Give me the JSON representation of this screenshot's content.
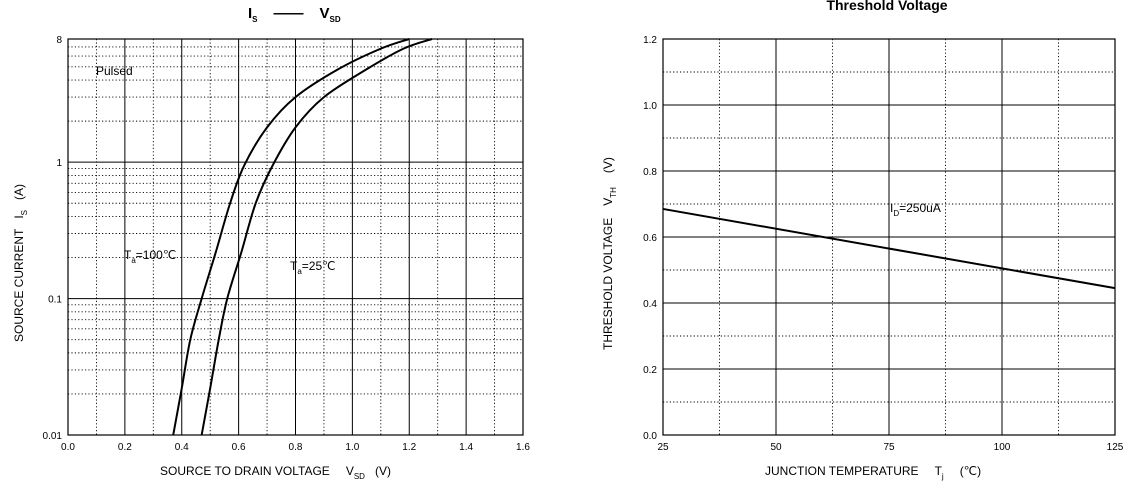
{
  "chart_data": [
    {
      "type": "line",
      "title": {
        "main": "I",
        "sub": "S",
        "dash": "——",
        "main2": "V",
        "sub2": "SD"
      },
      "xlabel": {
        "text": "SOURCE TO DRAIN VOLTAGE",
        "symbol": "V",
        "sub": "SD",
        "unit": "(V)"
      },
      "ylabel": {
        "text": "SOURCE CURRENT",
        "symbol": "I",
        "sub": "S",
        "unit": "(A)"
      },
      "xlim": [
        0.0,
        1.6
      ],
      "ylim": [
        0.01,
        8
      ],
      "yscale": "log",
      "grid": true,
      "x_ticks": [
        "0.0",
        "0.2",
        "0.4",
        "0.6",
        "0.8",
        "1.0",
        "1.2",
        "1.4",
        "1.6"
      ],
      "y_ticks": [
        {
          "value": 0.01,
          "label": "0.01"
        },
        {
          "value": 0.1,
          "label": "0.1"
        },
        {
          "value": 1,
          "label": "1"
        },
        {
          "value": 8,
          "label": "8"
        }
      ],
      "annotations": [
        {
          "text": "Pulsed"
        },
        {
          "text": "T",
          "sub": "a",
          "text2": "=100℃"
        },
        {
          "text": "T",
          "sub": "a",
          "text2": "=25℃"
        }
      ],
      "series": [
        {
          "id": "ta100",
          "x": [
            0.37,
            0.4,
            0.43,
            0.47,
            0.52,
            0.57,
            0.62,
            0.7,
            0.8,
            0.95,
            1.1,
            1.2
          ],
          "y": [
            0.01,
            0.022,
            0.05,
            0.1,
            0.22,
            0.5,
            0.95,
            1.8,
            3.0,
            4.8,
            6.8,
            8.0
          ]
        },
        {
          "id": "ta25",
          "x": [
            0.47,
            0.5,
            0.53,
            0.56,
            0.61,
            0.66,
            0.72,
            0.8,
            0.9,
            1.05,
            1.18,
            1.28
          ],
          "y": [
            0.01,
            0.022,
            0.05,
            0.1,
            0.22,
            0.5,
            0.95,
            1.8,
            3.0,
            4.8,
            6.8,
            8.0
          ]
        }
      ]
    },
    {
      "type": "line",
      "title": {
        "main": "Threshold Voltage"
      },
      "xlabel": {
        "text": "JUNCTION TEMPERATURE",
        "symbol": "T",
        "sub": "j",
        "unit": "(℃)"
      },
      "ylabel": {
        "text": "THRESHOLD VOLTAGE",
        "symbol": "V",
        "sub": "TH",
        "unit": "(V)"
      },
      "xlim": [
        25,
        125
      ],
      "ylim": [
        0.0,
        1.2
      ],
      "grid": true,
      "x_ticks": [
        "25",
        "50",
        "75",
        "100",
        "125"
      ],
      "y_ticks": [
        "0.0",
        "0.2",
        "0.4",
        "0.6",
        "0.8",
        "1.0",
        "1.2"
      ],
      "annotations": [
        {
          "text": "I",
          "sub": "D",
          "text2": "=250uA"
        }
      ],
      "series": [
        {
          "id": "vth",
          "x": [
            25,
            125
          ],
          "y": [
            0.685,
            0.445
          ]
        }
      ]
    }
  ]
}
